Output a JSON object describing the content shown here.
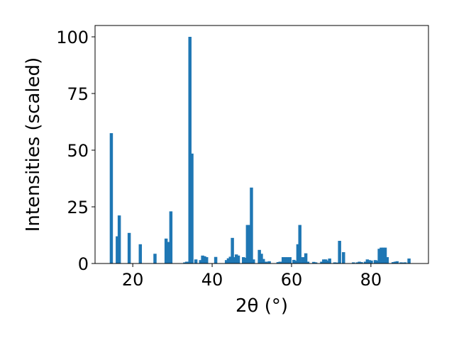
{
  "chart_data": {
    "type": "bar",
    "title": "",
    "xlabel": "2θ (°)",
    "ylabel": "Intensities (scaled)",
    "xlim": [
      10.5,
      94.5
    ],
    "ylim": [
      0,
      105
    ],
    "xticks": [
      20,
      40,
      60,
      80
    ],
    "yticks": [
      0,
      25,
      50,
      75,
      100
    ],
    "grid": false,
    "bar_color": "#1f77b4",
    "bar_width": 0.8,
    "x": [
      14.6,
      16.1,
      16.6,
      19.1,
      21.9,
      25.6,
      28.4,
      28.9,
      29.6,
      33.1,
      33.6,
      34.4,
      34.9,
      35.9,
      37.1,
      37.6,
      38.1,
      38.6,
      40.9,
      43.6,
      44.1,
      44.6,
      45.1,
      45.6,
      46.1,
      46.6,
      47.9,
      48.4,
      48.9,
      49.4,
      49.9,
      50.4,
      51.9,
      52.4,
      52.9,
      53.6,
      54.4,
      56.6,
      57.1,
      57.9,
      58.4,
      58.9,
      59.6,
      60.6,
      61.1,
      61.6,
      62.1,
      62.9,
      63.6,
      64.1,
      65.6,
      66.1,
      67.6,
      68.1,
      68.6,
      69.1,
      69.6,
      70.9,
      71.6,
      72.1,
      73.1,
      75.6,
      76.6,
      77.1,
      77.6,
      78.6,
      79.1,
      79.6,
      80.1,
      81.1,
      81.6,
      82.1,
      82.6,
      83.1,
      83.6,
      84.1,
      85.6,
      86.1,
      86.6,
      87.6,
      88.1,
      88.6,
      89.6
    ],
    "values": [
      57.5,
      12,
      21.2,
      13.5,
      8.5,
      4.3,
      11,
      9.5,
      23,
      0.5,
      0.8,
      100,
      48.5,
      1.8,
      1.5,
      3.5,
      3.2,
      2.8,
      2.9,
      1.5,
      2.3,
      3,
      11.3,
      2.8,
      4,
      3.5,
      2.8,
      2.5,
      17,
      17,
      33.5,
      1.8,
      6,
      4.3,
      2,
      0.8,
      1,
      0.6,
      0.8,
      2.8,
      2.8,
      2.8,
      2.8,
      1.6,
      1.2,
      8.5,
      17,
      2.8,
      4.5,
      0.8,
      0.7,
      0.5,
      0.8,
      1.8,
      1.8,
      1.3,
      2.2,
      0.5,
      0.4,
      10,
      5,
      0.5,
      0.5,
      0.8,
      0.6,
      0.8,
      1.8,
      1.5,
      1.3,
      1.5,
      1.3,
      6.5,
      7,
      7,
      7,
      2.8,
      0.6,
      0.8,
      1,
      0.5,
      0.4,
      0.5,
      2.2
    ]
  }
}
